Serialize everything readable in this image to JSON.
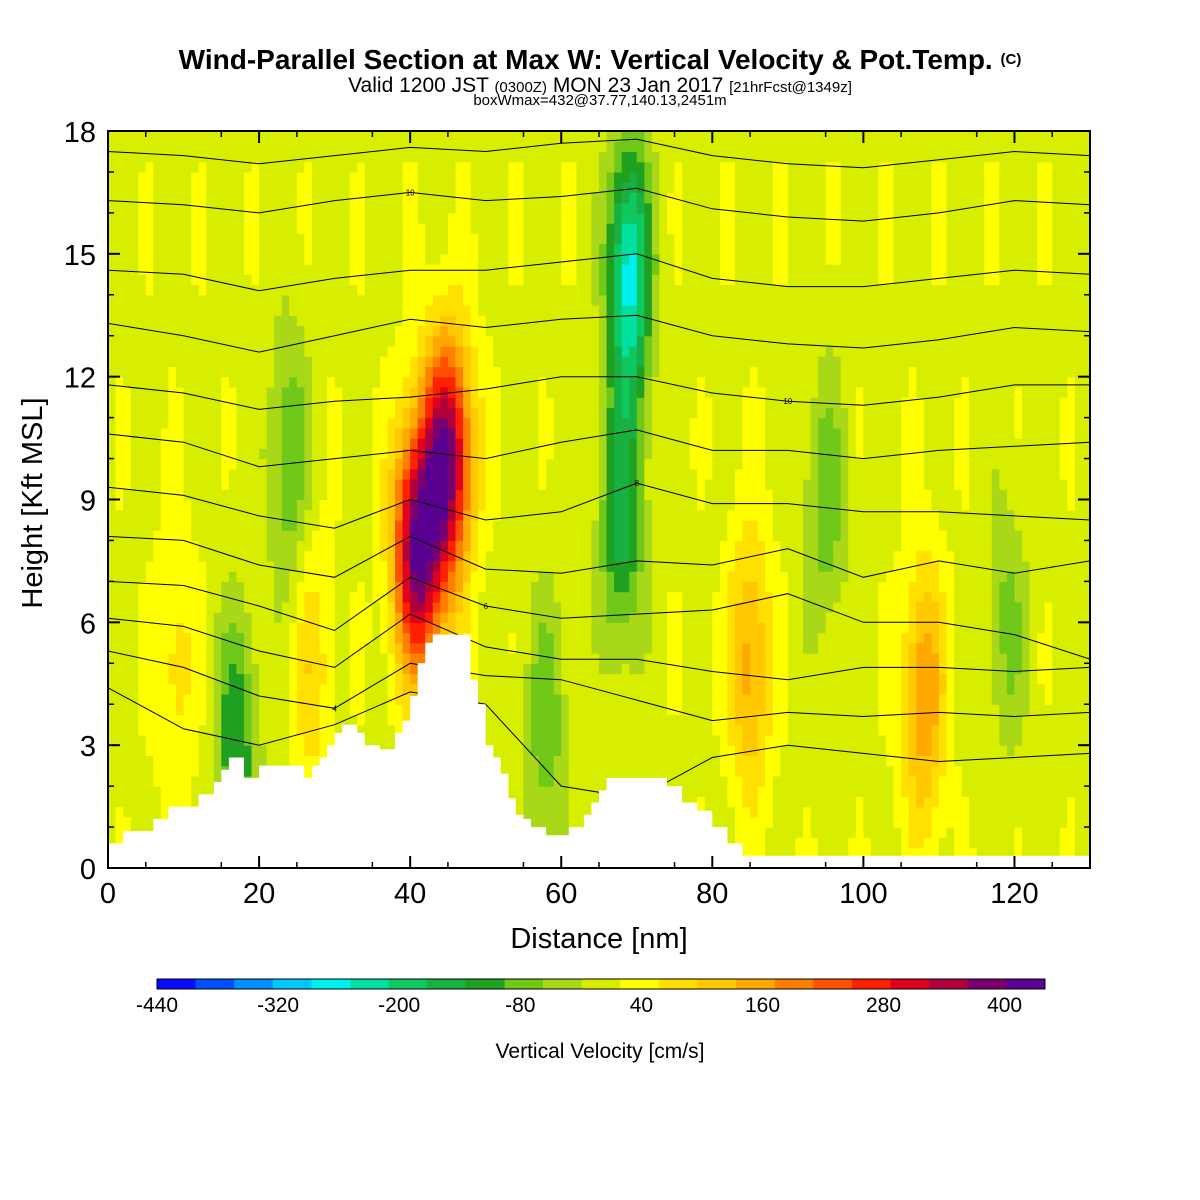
{
  "header": {
    "title": "Wind-Parallel Section at Max W: Vertical Velocity & Pot.Temp.",
    "copyright": "(C)",
    "valid_prefix": "Valid 1200 JST",
    "valid_utc": "(0300Z)",
    "valid_date": "MON 23 Jan 2017",
    "forecast_info": "[21hrFcst@1349z]",
    "box_info": "boxWmax=432@37.77,140.13,2451m"
  },
  "chart_data": {
    "type": "heatmap",
    "xlabel": "Distance [nm]",
    "ylabel": "Height [Kft MSL]",
    "xlim": [
      0,
      130
    ],
    "ylim": [
      0,
      18
    ],
    "x_ticks": [
      "0",
      "20",
      "40",
      "60",
      "80",
      "100",
      "120"
    ],
    "y_ticks": [
      "0",
      "3",
      "6",
      "9",
      "12",
      "15",
      "18"
    ],
    "colorbar": {
      "label": "Vertical Velocity [cm/s]",
      "tick_labels": [
        "-440",
        "-320",
        "-200",
        "-80",
        "40",
        "160",
        "280",
        "400"
      ],
      "levels": [
        -440,
        -400,
        -360,
        -320,
        -280,
        -240,
        -200,
        -160,
        -120,
        -80,
        -40,
        0,
        40,
        80,
        120,
        160,
        200,
        240,
        280,
        320,
        360,
        400,
        440
      ],
      "colors": [
        "#0a0aff",
        "#0050ff",
        "#0090ff",
        "#00c8ff",
        "#00f0f0",
        "#00e0a0",
        "#10c860",
        "#18b040",
        "#20a020",
        "#70c818",
        "#a8d818",
        "#d8ee00",
        "#ffff00",
        "#ffe000",
        "#ffc800",
        "#ffa800",
        "#ff8000",
        "#ff5000",
        "#ff2000",
        "#e00020",
        "#b0003c",
        "#7a0070",
        "#5a0090"
      ]
    },
    "max_w": {
      "value": 432,
      "unit": "cm/s",
      "lat": 37.77,
      "lon": 140.13,
      "height_m": 2451
    },
    "w_features": [
      {
        "x": 45,
        "y": 10,
        "w": 410,
        "desc": "strong updraft"
      },
      {
        "x": 41,
        "y": 7.8,
        "w": 432
      },
      {
        "x": 69,
        "y": 14.5,
        "w": -260,
        "desc": "downdraft"
      },
      {
        "x": 68,
        "y": 8.5,
        "w": -140
      },
      {
        "x": 85,
        "y": 5,
        "w": 180
      },
      {
        "x": 108,
        "y": 4.2,
        "w": 200
      },
      {
        "x": 24,
        "y": 10,
        "w": -80
      },
      {
        "x": 17,
        "y": 3,
        "w": -120
      },
      {
        "x": 58,
        "y": 3.5,
        "w": -70
      },
      {
        "x": 95,
        "y": 9,
        "w": -70
      },
      {
        "x": 27,
        "y": 5,
        "w": 110
      },
      {
        "x": 9,
        "y": 5,
        "w": 100
      },
      {
        "x": 119,
        "y": 6,
        "w": -50
      }
    ],
    "terrain_profile": {
      "x": [
        0,
        2,
        4,
        6,
        8,
        10,
        12,
        14,
        15,
        16,
        17,
        18,
        20,
        22,
        24,
        25,
        26,
        27,
        28,
        29,
        30,
        31,
        32,
        33,
        34,
        35,
        36,
        37,
        38,
        39,
        40,
        41,
        42,
        43,
        44,
        45,
        46,
        47,
        48,
        49,
        50,
        51,
        52,
        53,
        54,
        55,
        56,
        57,
        58,
        59,
        60,
        61,
        62,
        63,
        64,
        65,
        66,
        68,
        70,
        72,
        74,
        76,
        78,
        80,
        82,
        84,
        86,
        90,
        95,
        100,
        105,
        110,
        115,
        120,
        125,
        130
      ],
      "y": [
        0.6,
        0.9,
        0.9,
        1.2,
        1.5,
        1.5,
        1.8,
        2.1,
        2.4,
        2.7,
        2.7,
        2.2,
        2.5,
        2.5,
        2.5,
        2.5,
        2.2,
        2.5,
        2.7,
        3.0,
        3.3,
        3.5,
        3.5,
        3.3,
        3.0,
        3.0,
        2.9,
        2.9,
        3.3,
        3.6,
        4.2,
        5.0,
        5.5,
        5.7,
        5.7,
        5.7,
        5.7,
        5.7,
        4.6,
        4.0,
        3.0,
        2.7,
        2.3,
        1.7,
        1.3,
        1.2,
        1.0,
        1.0,
        0.8,
        0.8,
        0.8,
        1.0,
        1.0,
        1.3,
        1.6,
        1.9,
        2.2,
        2.2,
        2.2,
        2.2,
        2.0,
        1.6,
        1.4,
        1.0,
        0.6,
        0.3,
        0.3,
        0.3,
        0.3,
        0.3,
        0.3,
        0.3,
        0.3,
        0.3,
        0.3,
        0.3
      ]
    },
    "theta_contours": [
      {
        "label": "",
        "x": [
          0,
          10,
          20,
          30,
          40,
          50,
          60,
          70,
          80,
          90,
          100,
          110,
          120,
          130
        ],
        "y": [
          4.4,
          3.4,
          3.0,
          3.5,
          4.3,
          4.0,
          2.0,
          1.7,
          2.7,
          3.0,
          2.8,
          2.6,
          2.7,
          2.8
        ]
      },
      {
        "label": "4",
        "x": [
          0,
          10,
          20,
          30,
          40,
          50,
          60,
          70,
          80,
          90,
          100,
          110,
          120,
          130
        ],
        "y": [
          5.3,
          4.9,
          4.2,
          3.9,
          5.0,
          4.7,
          4.6,
          4.1,
          3.6,
          3.8,
          3.7,
          3.8,
          3.7,
          3.8
        ]
      },
      {
        "label": "",
        "x": [
          0,
          10,
          20,
          30,
          40,
          50,
          60,
          70,
          80,
          90,
          100,
          110,
          120,
          130
        ],
        "y": [
          6.1,
          5.9,
          5.3,
          4.9,
          6.2,
          5.4,
          5.1,
          5.1,
          4.8,
          4.6,
          4.9,
          4.9,
          4.8,
          4.9
        ]
      },
      {
        "label": "6",
        "x": [
          0,
          10,
          20,
          30,
          40,
          50,
          60,
          70,
          80,
          90,
          100,
          110,
          120,
          130
        ],
        "y": [
          7.0,
          6.9,
          6.4,
          5.8,
          7.1,
          6.4,
          6.1,
          6.2,
          6.3,
          6.7,
          6.0,
          6.0,
          5.7,
          5.1
        ]
      },
      {
        "label": "",
        "x": [
          0,
          10,
          20,
          30,
          40,
          50,
          60,
          70,
          80,
          90,
          100,
          110,
          120,
          130
        ],
        "y": [
          8.1,
          8.0,
          7.4,
          7.1,
          8.1,
          7.3,
          7.2,
          7.5,
          7.4,
          7.8,
          7.1,
          7.5,
          7.2,
          7.5
        ]
      },
      {
        "label": "8",
        "x": [
          0,
          10,
          20,
          30,
          40,
          50,
          60,
          70,
          80,
          90,
          100,
          110,
          120,
          130
        ],
        "y": [
          9.3,
          9.1,
          8.6,
          8.3,
          9.0,
          8.5,
          8.7,
          9.4,
          8.9,
          8.9,
          8.7,
          8.7,
          8.6,
          8.5
        ]
      },
      {
        "label": "",
        "x": [
          0,
          10,
          20,
          30,
          40,
          50,
          60,
          70,
          80,
          90,
          100,
          110,
          120,
          130
        ],
        "y": [
          10.6,
          10.4,
          9.8,
          10.0,
          10.2,
          10.0,
          10.4,
          10.7,
          10.2,
          10.2,
          10.0,
          10.2,
          10.3,
          10.4
        ]
      },
      {
        "label": "10",
        "x": [
          0,
          10,
          20,
          30,
          40,
          50,
          60,
          70,
          80,
          90,
          100,
          110,
          120,
          130
        ],
        "y": [
          11.8,
          11.6,
          11.2,
          11.4,
          11.5,
          11.7,
          12.0,
          12.0,
          11.6,
          11.4,
          11.3,
          11.5,
          11.8,
          11.8
        ]
      },
      {
        "label": "",
        "x": [
          0,
          10,
          20,
          30,
          40,
          50,
          60,
          70,
          80,
          90,
          100,
          110,
          120,
          130
        ],
        "y": [
          13.3,
          13.0,
          12.6,
          13.0,
          13.4,
          13.2,
          13.4,
          13.5,
          13.0,
          12.8,
          12.7,
          12.9,
          13.2,
          13.1
        ]
      },
      {
        "label": "",
        "x": [
          0,
          10,
          20,
          30,
          40,
          50,
          60,
          70,
          80,
          90,
          100,
          110,
          120,
          130
        ],
        "y": [
          14.6,
          14.5,
          14.1,
          14.4,
          14.6,
          14.6,
          14.8,
          15.0,
          14.4,
          14.2,
          14.2,
          14.4,
          14.6,
          14.5
        ]
      },
      {
        "label": "10",
        "x": [
          0,
          10,
          20,
          30,
          40,
          50,
          60,
          70,
          80,
          90,
          100,
          110,
          120,
          130
        ],
        "y": [
          16.3,
          16.2,
          16.0,
          16.3,
          16.5,
          16.3,
          16.4,
          16.6,
          16.1,
          15.9,
          15.8,
          16.0,
          16.3,
          16.2
        ]
      },
      {
        "label": "",
        "x": [
          0,
          10,
          20,
          30,
          40,
          50,
          60,
          70,
          80,
          90,
          100,
          110,
          120,
          130
        ],
        "y": [
          17.5,
          17.4,
          17.2,
          17.4,
          17.6,
          17.5,
          17.7,
          17.8,
          17.4,
          17.2,
          17.1,
          17.3,
          17.5,
          17.4
        ]
      }
    ]
  }
}
